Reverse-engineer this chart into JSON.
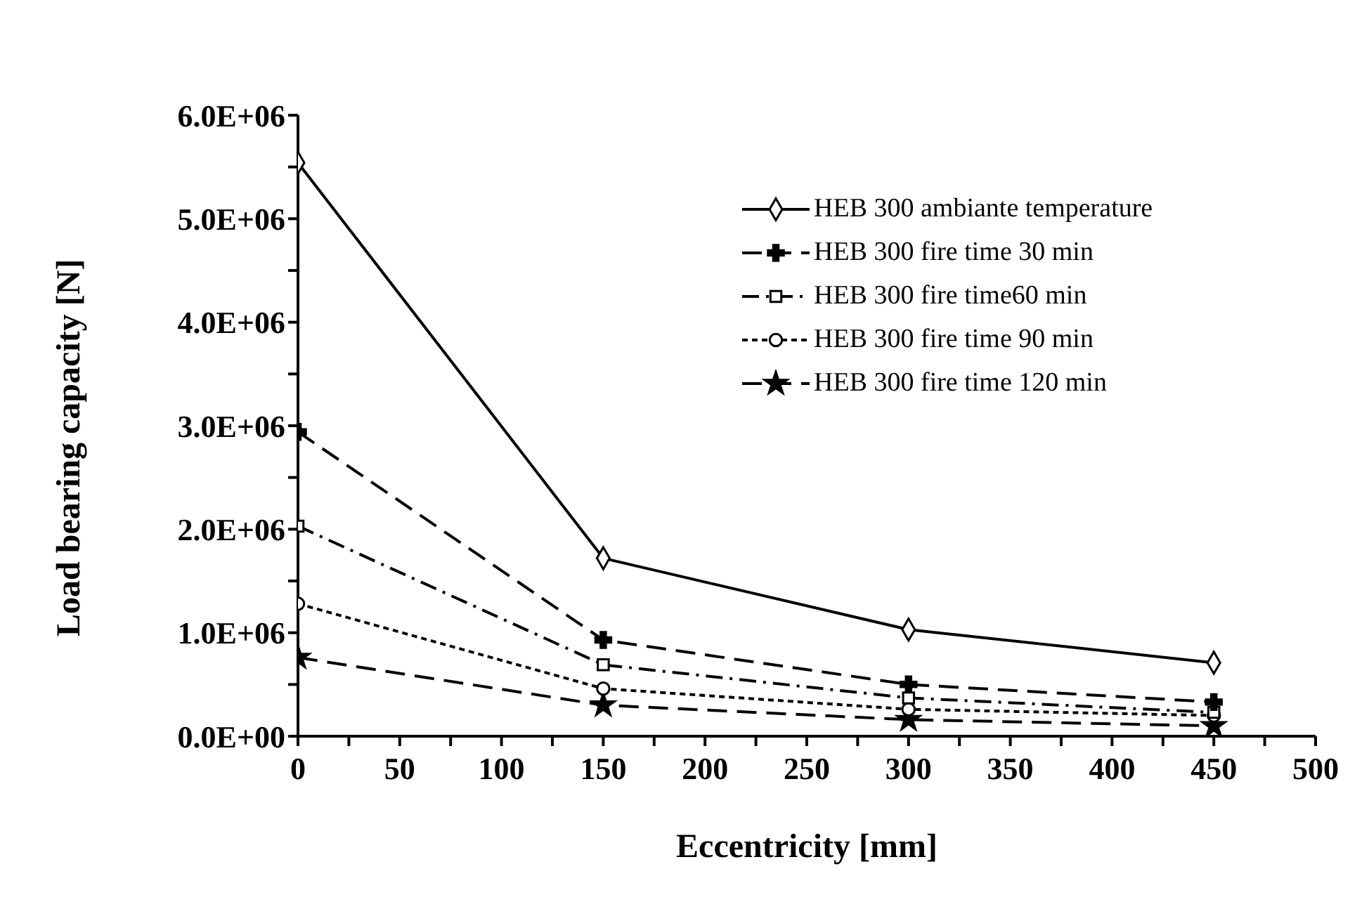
{
  "chart_data": {
    "type": "line",
    "xlabel": "Eccentricity [mm]",
    "ylabel": "Load bearing capacity [N]",
    "x": [
      0,
      150,
      300,
      450
    ],
    "series": [
      {
        "name": "HEB 300 ambiante temperature",
        "color": "#000000",
        "marker": "diamond",
        "line_style": "solid",
        "values": [
          5540000,
          1720000,
          1030000,
          710000
        ]
      },
      {
        "name": "HEB 300 fire time 30 min",
        "color": "#000000",
        "marker": "cross",
        "line_style": "dashed",
        "values": [
          2940000,
          930000,
          500000,
          330000
        ]
      },
      {
        "name": "HEB 300 fire time60 min",
        "color": "#000000",
        "marker": "square",
        "line_style": "dashdot",
        "values": [
          2030000,
          690000,
          370000,
          230000
        ]
      },
      {
        "name": "HEB 300 fire time 90 min",
        "color": "#000000",
        "marker": "circle",
        "line_style": "dotted",
        "values": [
          1280000,
          460000,
          260000,
          200000
        ]
      },
      {
        "name": "HEB 300 fire time 120 min",
        "color": "#000000",
        "marker": "star",
        "line_style": "dashed",
        "values": [
          760000,
          300000,
          160000,
          100000
        ]
      }
    ],
    "xlim": [
      0,
      500
    ],
    "xticks": [
      0,
      {
        "value": 25,
        "label": null
      },
      50,
      {
        "value": 75,
        "label": null
      },
      100,
      {
        "value": 125,
        "label": null
      },
      150,
      {
        "value": 175,
        "label": null
      },
      200,
      {
        "value": 225,
        "label": null
      },
      250,
      {
        "value": 275,
        "label": null
      },
      300,
      {
        "value": 325,
        "label": null
      },
      350,
      {
        "value": 375,
        "label": null
      },
      400,
      {
        "value": 425,
        "label": null
      },
      450,
      {
        "value": 475,
        "label": null
      },
      500
    ],
    "ylim": [
      0,
      6000000
    ],
    "yticks": [
      {
        "value": 0,
        "label": "0.0E+00"
      },
      {
        "value": 500000,
        "label": null
      },
      {
        "value": 1000000,
        "label": "1.0E+06"
      },
      {
        "value": 1500000,
        "label": null
      },
      {
        "value": 2000000,
        "label": "2.0E+06"
      },
      {
        "value": 2500000,
        "label": null
      },
      {
        "value": 3000000,
        "label": "3.0E+06"
      },
      {
        "value": 3500000,
        "label": null
      },
      {
        "value": 4000000,
        "label": "4.0E+06"
      },
      {
        "value": 4500000,
        "label": null
      },
      {
        "value": 5000000,
        "label": "5.0E+06"
      },
      {
        "value": 5500000,
        "label": null
      },
      {
        "value": 6000000,
        "label": "6.0E+06"
      }
    ],
    "grid": false,
    "legend": "top right"
  }
}
